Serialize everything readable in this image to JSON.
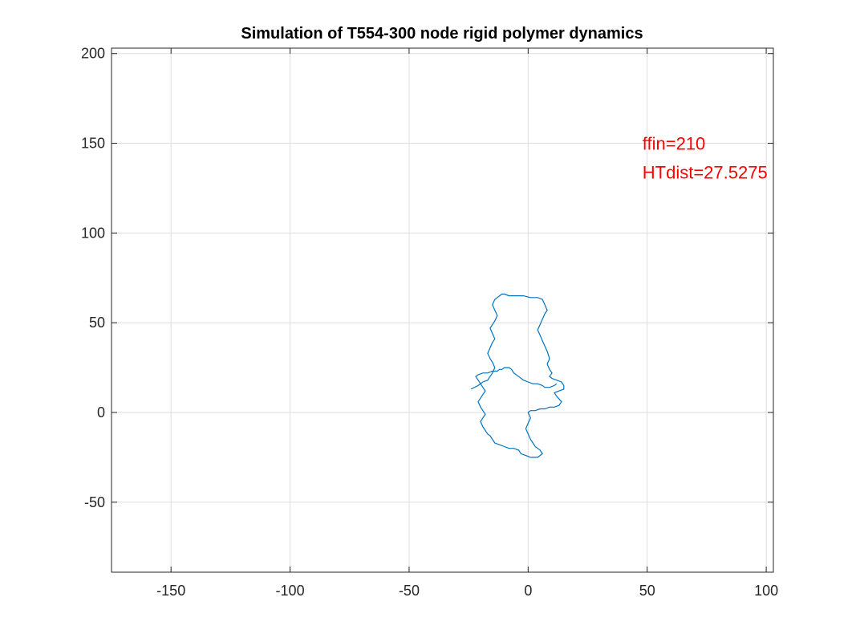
{
  "chart_data": {
    "type": "line",
    "title": "Simulation of T554-300 node rigid polymer dynamics",
    "xlabel": "",
    "ylabel": "",
    "xlim": [
      -175,
      103
    ],
    "ylim": [
      -89,
      203
    ],
    "xticks": [
      -150,
      -100,
      -50,
      0,
      50,
      100
    ],
    "yticks": [
      -50,
      0,
      50,
      100,
      150,
      200
    ],
    "xtick_labels": [
      "-150",
      "-100",
      "-50",
      "0",
      "50",
      "100"
    ],
    "ytick_labels": [
      "-50",
      "0",
      "50",
      "100",
      "150",
      "200"
    ],
    "grid": true,
    "line_color": "#0072BD",
    "annotation_color": "#FF0000",
    "annotations": [
      {
        "text": "ffin=210",
        "x": 48,
        "y": 150
      },
      {
        "text": "HTdist=27.5275",
        "x": 48,
        "y": 134
      }
    ],
    "series": [
      {
        "x": [
          -24,
          -21,
          -19,
          -17,
          -16,
          -15,
          -14,
          -15,
          -16,
          -17,
          -16,
          -15,
          -14,
          -15,
          -16,
          -15,
          -14,
          -13,
          -14,
          -15,
          -14,
          -13,
          -12,
          -11,
          -10,
          -8,
          -5,
          -2,
          1,
          4,
          6,
          7,
          8,
          7,
          6,
          5,
          4,
          5,
          6,
          7,
          8,
          9,
          8,
          9,
          10,
          9,
          10,
          12,
          14,
          15,
          15,
          13,
          11,
          12,
          14,
          13,
          11,
          9,
          7,
          5,
          3,
          1,
          0,
          1,
          0,
          -1,
          0,
          1,
          2,
          3,
          4,
          5,
          6,
          5,
          4,
          3,
          1,
          -1,
          -3,
          -4,
          -6,
          -8,
          -10,
          -12,
          -14,
          -15,
          -16,
          -17,
          -18,
          -19,
          -20,
          -19,
          -18,
          -19,
          -20,
          -21,
          -20,
          -19,
          -18,
          -19,
          -20,
          -21,
          -22,
          -21,
          -19,
          -17,
          -15,
          -13,
          -12,
          -11,
          -10,
          -9,
          -8,
          -7,
          -6,
          -4,
          -2,
          0,
          2,
          4,
          6,
          7,
          9,
          11,
          12
        ],
        "y": [
          13,
          15,
          17,
          18,
          20,
          22,
          25,
          28,
          30,
          33,
          36,
          39,
          41,
          44,
          47,
          49,
          51,
          54,
          57,
          60,
          63,
          64,
          65,
          66,
          66,
          65,
          65,
          65,
          64,
          64,
          63,
          60,
          57,
          55,
          52,
          49,
          46,
          43,
          40,
          37,
          34,
          30,
          27,
          24,
          22,
          20,
          19,
          18,
          17,
          15,
          13,
          12,
          11,
          9,
          6,
          4,
          3,
          3,
          2,
          2,
          1,
          1,
          0,
          -3,
          -6,
          -9,
          -12,
          -15,
          -17,
          -19,
          -20,
          -21,
          -23,
          -24,
          -25,
          -25,
          -25,
          -24,
          -23,
          -21,
          -20,
          -20,
          -19,
          -18,
          -17,
          -15,
          -13,
          -12,
          -10,
          -8,
          -5,
          -3,
          -1,
          1,
          3,
          6,
          8,
          10,
          12,
          14,
          16,
          18,
          20,
          21,
          22,
          22,
          23,
          23,
          24,
          24,
          25,
          25,
          25,
          24,
          22,
          20,
          18,
          17,
          16,
          16,
          15,
          14,
          14,
          15,
          16
        ]
      }
    ]
  }
}
